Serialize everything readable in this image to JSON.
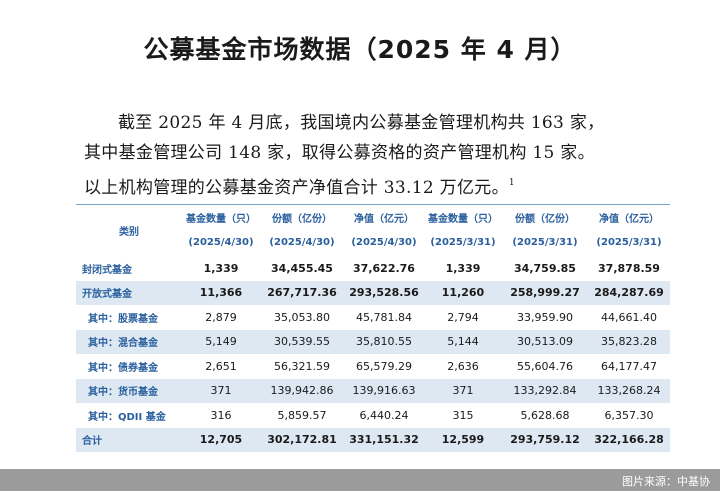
{
  "title": "公募基金市场数据（2025 年 4 月）",
  "paragraph": {
    "line1": "截至 2025 年 4 月底，我国境内公募基金管理机构共 163 家，",
    "line2": "其中基金管理公司 148 家，取得公募资格的资产管理机构 15 家。",
    "line3": "以上机构管理的公募基金资产净值合计 33.12 万亿元。",
    "footnote_mark": "1"
  },
  "table": {
    "category_header": "类别",
    "headers": [
      {
        "name": "基金数量（只）",
        "date": "(2025/4/30)"
      },
      {
        "name": "份额（亿份）",
        "date": "(2025/4/30)"
      },
      {
        "name": "净值（亿元）",
        "date": "(2025/4/30)"
      },
      {
        "name": "基金数量（只）",
        "date": "(2025/3/31)"
      },
      {
        "name": "份额（亿份）",
        "date": "(2025/3/31)"
      },
      {
        "name": "净值（亿元）",
        "date": "(2025/3/31)"
      }
    ],
    "rows": [
      {
        "label": "封闭式基金",
        "cells": [
          "1,339",
          "34,455.45",
          "37,622.76",
          "1,339",
          "34,759.85",
          "37,878.59"
        ]
      },
      {
        "label": "开放式基金",
        "cells": [
          "11,366",
          "267,717.36",
          "293,528.56",
          "11,260",
          "258,999.27",
          "284,287.69"
        ]
      },
      {
        "label": "其中：股票基金",
        "cells": [
          "2,879",
          "35,053.80",
          "45,781.84",
          "2,794",
          "33,959.90",
          "44,661.40"
        ]
      },
      {
        "label": "其中：混合基金",
        "cells": [
          "5,149",
          "30,539.55",
          "35,810.55",
          "5,144",
          "30,513.09",
          "35,823.28"
        ]
      },
      {
        "label": "其中：债券基金",
        "cells": [
          "2,651",
          "56,321.59",
          "65,579.29",
          "2,636",
          "55,604.76",
          "64,177.47"
        ]
      },
      {
        "label": "其中：货币基金",
        "cells": [
          "371",
          "139,942.86",
          "139,916.63",
          "371",
          "133,292.84",
          "133,268.24"
        ]
      },
      {
        "label": "其中：QDII 基金",
        "cells": [
          "316",
          "5,859.57",
          "6,440.24",
          "315",
          "5,628.68",
          "6,357.30"
        ]
      },
      {
        "label": "合计",
        "cells": [
          "12,705",
          "302,172.81",
          "331,151.32",
          "12,599",
          "293,759.12",
          "322,166.28"
        ]
      }
    ]
  },
  "credit": "图片来源：中基协"
}
